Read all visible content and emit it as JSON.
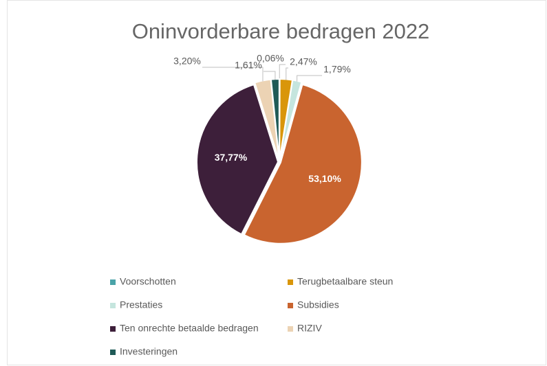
{
  "chart_data": {
    "type": "pie",
    "title": "Oninvorderbare bedragen 2022",
    "categories": [
      "Voorschotten",
      "Terugbetaalbare steun",
      "Prestaties",
      "Subsidies",
      "Ten onrechte betaalde bedragen",
      "RIZIV",
      "Investeringen"
    ],
    "values": [
      0.06,
      2.47,
      1.79,
      53.1,
      37.77,
      3.2,
      1.61
    ],
    "value_labels": [
      "0,06%",
      "2,47%",
      "1,79%",
      "53,10%",
      "37,77%",
      "3,20%",
      "1,61%"
    ],
    "colors": [
      "#4aa3a8",
      "#d9960a",
      "#c5e5de",
      "#c9642f",
      "#3d1f3a",
      "#ecd3b4",
      "#1f5a57"
    ],
    "legend": "bottom"
  }
}
